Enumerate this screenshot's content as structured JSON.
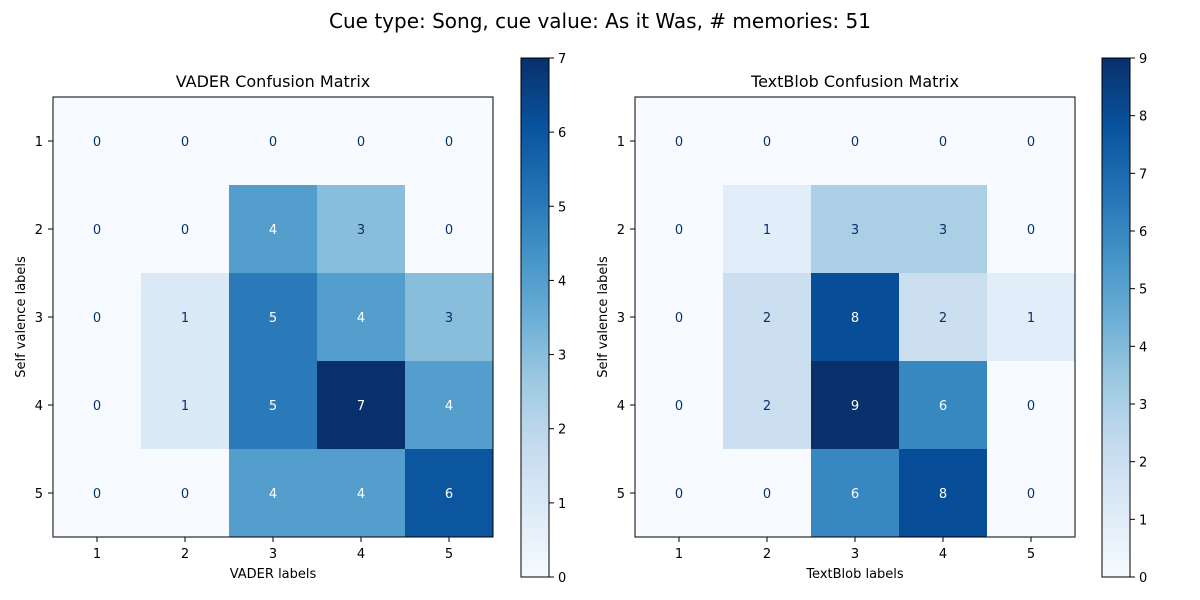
{
  "suptitle": "Cue type: Song, cue value: As it Was, # memories: 51",
  "colors": {
    "background": "#ffffff",
    "colormap": [
      "#f7fbff",
      "#deebf7",
      "#c6dbef",
      "#9ecae1",
      "#6baed6",
      "#4292c6",
      "#2171b5",
      "#08519c",
      "#08306b"
    ],
    "text_dark": "#08306b",
    "text_light": "#ffffff",
    "axis": "#000000"
  },
  "chart_data": [
    {
      "type": "heatmap",
      "title": "VADER Confusion Matrix",
      "xlabel": "VADER labels",
      "ylabel": "Self valence labels",
      "x_ticks": [
        "1",
        "2",
        "3",
        "4",
        "5"
      ],
      "y_ticks": [
        "1",
        "2",
        "3",
        "4",
        "5"
      ],
      "matrix": [
        [
          0,
          0,
          0,
          0,
          0
        ],
        [
          0,
          0,
          4,
          3,
          0
        ],
        [
          0,
          1,
          5,
          4,
          3
        ],
        [
          0,
          1,
          5,
          7,
          4
        ],
        [
          0,
          0,
          4,
          4,
          6
        ]
      ],
      "colorbar": {
        "range": [
          0,
          7
        ],
        "ticks": [
          "0",
          "1",
          "2",
          "3",
          "4",
          "5",
          "6",
          "7"
        ]
      }
    },
    {
      "type": "heatmap",
      "title": "TextBlob Confusion Matrix",
      "xlabel": "TextBlob labels",
      "ylabel": "Self valence labels",
      "x_ticks": [
        "1",
        "2",
        "3",
        "4",
        "5"
      ],
      "y_ticks": [
        "1",
        "2",
        "3",
        "4",
        "5"
      ],
      "matrix": [
        [
          0,
          0,
          0,
          0,
          0
        ],
        [
          0,
          1,
          3,
          3,
          0
        ],
        [
          0,
          2,
          8,
          2,
          1
        ],
        [
          0,
          2,
          9,
          6,
          0
        ],
        [
          0,
          0,
          6,
          8,
          0
        ]
      ],
      "colorbar": {
        "range": [
          0,
          9
        ],
        "ticks": [
          "0",
          "1",
          "2",
          "3",
          "4",
          "5",
          "6",
          "7",
          "8",
          "9"
        ]
      }
    }
  ]
}
